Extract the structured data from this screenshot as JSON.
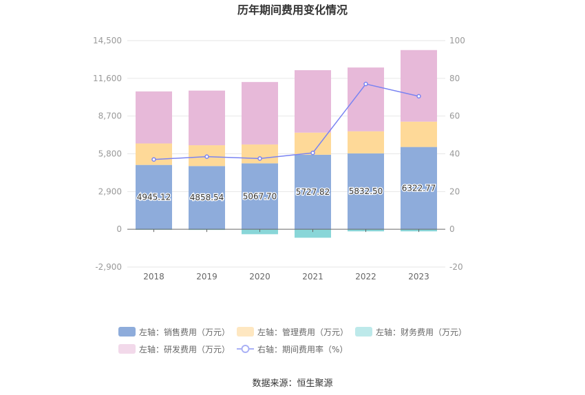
{
  "chart_data": {
    "type": "bar",
    "title": "历年期间费用变化情况",
    "categories": [
      "2018",
      "2019",
      "2020",
      "2021",
      "2022",
      "2023"
    ],
    "left_axis": {
      "ticks": [
        "14,500",
        "11,600",
        "8,700",
        "5,800",
        "2,900",
        "0",
        "-2,900"
      ],
      "min": -2900,
      "max": 14500
    },
    "right_axis": {
      "ticks": [
        "100",
        "80",
        "60",
        "40",
        "20",
        "0",
        "-20"
      ],
      "min": -20,
      "max": 100
    },
    "stacked": true,
    "series": [
      {
        "name": "左轴：销售费用（万元）",
        "axis": "left",
        "type": "bar",
        "color": "#8eacdb",
        "values": [
          4945.12,
          4858.54,
          5067.7,
          5727.82,
          5832.5,
          6322.77
        ],
        "labels": [
          "4945.12",
          "4858.54",
          "5067.70",
          "5727.82",
          "5832.50",
          "6322.77"
        ]
      },
      {
        "name": "左轴：管理费用（万元）",
        "axis": "left",
        "type": "bar",
        "color": "#fed998",
        "values": [
          1650,
          1600,
          1450,
          1700,
          1700,
          1950
        ]
      },
      {
        "name": "左轴：财务费用（万元）",
        "axis": "left",
        "type": "bar",
        "color": "#89d6d8",
        "values": [
          -40,
          -50,
          -380,
          -650,
          -160,
          -160
        ]
      },
      {
        "name": "左轴：研发费用（万元）",
        "axis": "left",
        "type": "bar",
        "color": "#e7b9d9",
        "values": [
          4000,
          4200,
          4800,
          4800,
          4900,
          5500
        ]
      },
      {
        "name": "右轴：期间费用率（%）",
        "axis": "right",
        "type": "line",
        "color": "#7983f2",
        "values": [
          37.0,
          38.5,
          37.5,
          40.5,
          77.0,
          70.5
        ]
      }
    ],
    "legend_position": "bottom",
    "grid": true
  },
  "source": "数据来源：恒生聚源"
}
